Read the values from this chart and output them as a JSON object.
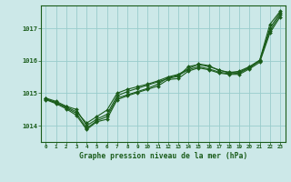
{
  "title": "Graphe pression niveau de la mer (hPa)",
  "xlabel_hours": [
    0,
    1,
    2,
    3,
    4,
    5,
    6,
    7,
    8,
    9,
    10,
    11,
    12,
    13,
    14,
    15,
    16,
    17,
    18,
    19,
    20,
    21,
    22,
    23
  ],
  "ylim": [
    1013.5,
    1017.7
  ],
  "yticks": [
    1014,
    1015,
    1016,
    1017
  ],
  "bg_color": "#cce8e8",
  "grid_color": "#99cccc",
  "line_color": "#1a5c1a",
  "marker_color": "#1a5c1a",
  "series": [
    [
      1014.85,
      1014.75,
      1014.6,
      1014.5,
      1014.0,
      1014.2,
      1014.35,
      1014.92,
      1015.05,
      1015.15,
      1015.25,
      1015.35,
      1015.45,
      1015.52,
      1015.82,
      1015.88,
      1015.82,
      1015.72,
      1015.62,
      1015.68,
      1015.82,
      1016.02,
      1017.12,
      1017.52
    ],
    [
      1014.82,
      1014.72,
      1014.55,
      1014.38,
      1013.92,
      1014.15,
      1014.28,
      1014.85,
      1014.95,
      1015.05,
      1015.15,
      1015.28,
      1015.48,
      1015.55,
      1015.72,
      1015.82,
      1015.75,
      1015.65,
      1015.6,
      1015.62,
      1015.78,
      1016.0,
      1016.92,
      1017.42
    ],
    [
      1014.83,
      1014.7,
      1014.58,
      1014.43,
      1014.08,
      1014.28,
      1014.48,
      1015.0,
      1015.12,
      1015.2,
      1015.28,
      1015.38,
      1015.5,
      1015.58,
      1015.75,
      1015.9,
      1015.85,
      1015.7,
      1015.65,
      1015.65,
      1015.8,
      1016.0,
      1017.0,
      1017.48
    ],
    [
      1014.8,
      1014.68,
      1014.52,
      1014.32,
      1013.88,
      1014.12,
      1014.2,
      1014.8,
      1014.92,
      1015.02,
      1015.12,
      1015.22,
      1015.42,
      1015.45,
      1015.68,
      1015.78,
      1015.72,
      1015.62,
      1015.58,
      1015.58,
      1015.75,
      1015.95,
      1016.85,
      1017.35
    ]
  ]
}
